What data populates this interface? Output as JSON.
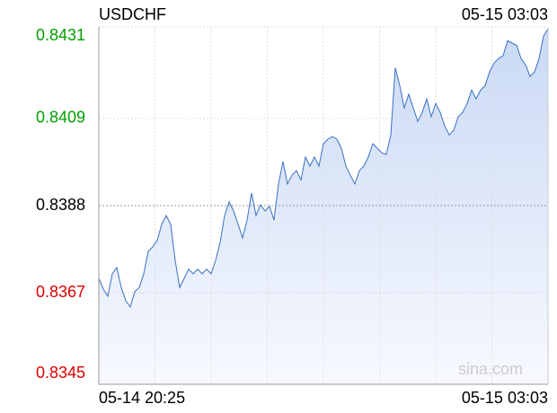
{
  "chart_data": {
    "type": "line",
    "title": "USDCHF",
    "timestamp": "05-15 03:03",
    "watermark": "sina.com",
    "xlabels": [
      "05-14 20:25",
      "05-15 03:03"
    ],
    "ylim": [
      0.8345,
      0.8431
    ],
    "yticks": [
      {
        "value": 0.8345,
        "label": "0.8345"
      },
      {
        "value": 0.8367,
        "label": "0.8367"
      },
      {
        "value": 0.8388,
        "label": "0.8388"
      },
      {
        "value": 0.8409,
        "label": "0.8409"
      },
      {
        "value": 0.8431,
        "label": "0.8431"
      }
    ],
    "ytick_colors": [
      "#e00000",
      "#e00000",
      "#000000",
      "#00a000",
      "#00a000"
    ],
    "grid": true,
    "color": "#3a6fc4",
    "values": [
      0.83705,
      0.83679,
      0.83662,
      0.83716,
      0.83731,
      0.83683,
      0.83651,
      0.83636,
      0.83673,
      0.83683,
      0.83716,
      0.8377,
      0.83781,
      0.83796,
      0.83835,
      0.83856,
      0.83835,
      0.83748,
      0.83683,
      0.83705,
      0.83727,
      0.83716,
      0.83727,
      0.83716,
      0.83727,
      0.83716,
      0.83748,
      0.83791,
      0.83856,
      0.83889,
      0.83867,
      0.83835,
      0.83802,
      0.83845,
      0.8391,
      0.83856,
      0.83882,
      0.83867,
      0.83878,
      0.83845,
      0.83932,
      0.83986,
      0.83932,
      0.83953,
      0.83964,
      0.83942,
      0.83997,
      0.83975,
      0.83997,
      0.83975,
      0.84029,
      0.8404,
      0.84046,
      0.8404,
      0.84018,
      0.83975,
      0.83953,
      0.83932,
      0.83964,
      0.83975,
      0.83997,
      0.84029,
      0.84018,
      0.84007,
      0.84003,
      0.8405,
      0.84212,
      0.84169,
      0.84115,
      0.84148,
      0.84115,
      0.84083,
      0.84104,
      0.84137,
      0.84094,
      0.84126,
      0.84104,
      0.84072,
      0.8405,
      0.84061,
      0.84094,
      0.84104,
      0.84126,
      0.84158,
      0.84137,
      0.84158,
      0.84169,
      0.84202,
      0.84223,
      0.84234,
      0.84241,
      0.84277,
      0.84271,
      0.84266,
      0.84234,
      0.84219,
      0.84191,
      0.84202,
      0.84234,
      0.84288,
      0.84305
    ]
  }
}
